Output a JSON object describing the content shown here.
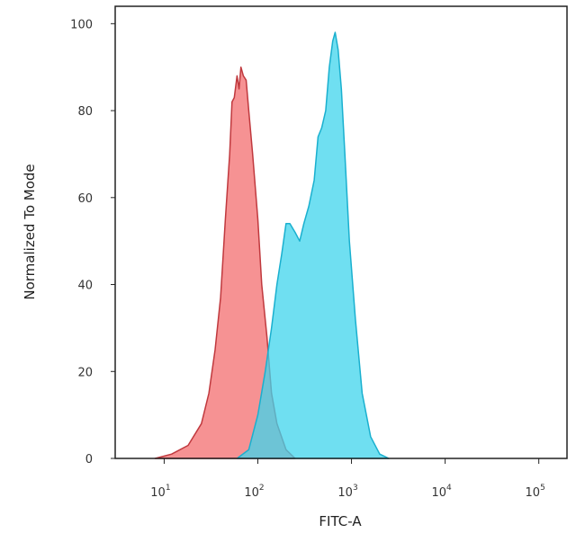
{
  "chart_data": {
    "type": "area",
    "title": "",
    "xlabel": "FITC-A",
    "ylabel": "Normalized To Mode",
    "x_scale": "log",
    "xlim": [
      3,
      200000
    ],
    "ylim": [
      0,
      104
    ],
    "grid": false,
    "legend": "none",
    "x_ticks": [
      {
        "value": 10,
        "base": "10",
        "exp": "1"
      },
      {
        "value": 100,
        "base": "10",
        "exp": "2"
      },
      {
        "value": 1000,
        "base": "10",
        "exp": "3"
      },
      {
        "value": 10000,
        "base": "10",
        "exp": "4"
      },
      {
        "value": 100000,
        "base": "10",
        "exp": "5"
      }
    ],
    "y_ticks": [
      "0",
      "20",
      "40",
      "60",
      "80",
      "100"
    ],
    "series": [
      {
        "color_fill": "#f47f80",
        "color_line": "#c0393e",
        "points": [
          [
            8,
            0
          ],
          [
            12,
            1
          ],
          [
            18,
            3
          ],
          [
            25,
            8
          ],
          [
            30,
            15
          ],
          [
            35,
            25
          ],
          [
            40,
            37
          ],
          [
            45,
            55
          ],
          [
            50,
            70
          ],
          [
            53,
            82
          ],
          [
            56,
            83
          ],
          [
            60,
            88
          ],
          [
            63,
            85
          ],
          [
            66,
            90
          ],
          [
            70,
            88
          ],
          [
            75,
            87
          ],
          [
            80,
            80
          ],
          [
            88,
            70
          ],
          [
            100,
            55
          ],
          [
            110,
            40
          ],
          [
            125,
            28
          ],
          [
            140,
            15
          ],
          [
            160,
            8
          ],
          [
            200,
            2
          ],
          [
            250,
            0
          ]
        ]
      },
      {
        "color_fill": "#3fd4ec",
        "color_line": "#1ab0cf",
        "points": [
          [
            60,
            0
          ],
          [
            80,
            2
          ],
          [
            100,
            10
          ],
          [
            120,
            20
          ],
          [
            140,
            30
          ],
          [
            160,
            40
          ],
          [
            180,
            47
          ],
          [
            200,
            54
          ],
          [
            220,
            54
          ],
          [
            250,
            52
          ],
          [
            280,
            50
          ],
          [
            310,
            54
          ],
          [
            350,
            58
          ],
          [
            400,
            64
          ],
          [
            440,
            74
          ],
          [
            480,
            76
          ],
          [
            530,
            80
          ],
          [
            580,
            90
          ],
          [
            630,
            96
          ],
          [
            670,
            98
          ],
          [
            720,
            94
          ],
          [
            780,
            85
          ],
          [
            850,
            70
          ],
          [
            950,
            50
          ],
          [
            1100,
            32
          ],
          [
            1300,
            15
          ],
          [
            1600,
            5
          ],
          [
            2000,
            1
          ],
          [
            2500,
            0
          ]
        ]
      }
    ]
  }
}
